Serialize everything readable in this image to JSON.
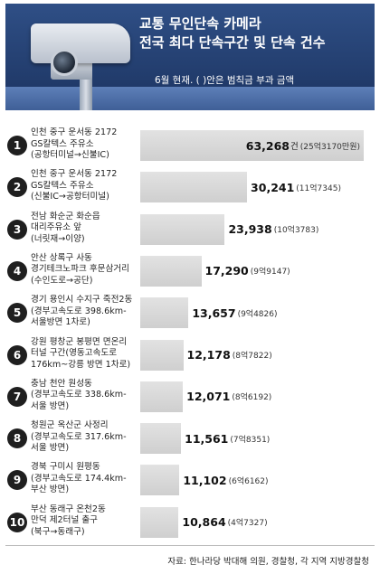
{
  "header": {
    "title_line1": "교통 무인단속 카메라",
    "title_line2": "전국 최다 단속구간 및 단속 건수",
    "subtitle": "6월 현재. (  )안은 범칙금 부과 금액"
  },
  "chart_data": {
    "type": "bar",
    "orientation": "horizontal",
    "unit": "건",
    "xlim": [
      0,
      63268
    ],
    "categories": [
      "인천 중구 운서동 2172\nGS칼텍스 주유소\n(공항터미널→신불IC)",
      "인천 중구 운서동 2172\nGS칼텍스 주유소\n(신불IC→공항터미널)",
      "전남 화순군 화순읍\n대리주유소 앞\n(너릿재→이양)",
      "안산 상록구 사동\n경기테크노파크 후문삼거리\n(수인도로→공단)",
      "경기 용인시 수지구 죽전2동\n(경부고속도로 398.6km-\n서울방면 1차로)",
      "강원 평창군 봉평면 면온리\n터널 구간(영동고속도로\n176km~강릉 방면 1차로)",
      "충남 천안 원성동\n(경부고속도로 338.6km-\n서울 방면)",
      "청원군 옥산군 사정리\n(경부고속도로 317.6km-\n서울 방면)",
      "경북 구미시 원평동\n(경부고속도로 174.4km-\n부산 방면)",
      "부산 동래구 온천2동\n만덕 제2터널 출구\n(북구→동래구)"
    ],
    "ranks": [
      "1",
      "2",
      "3",
      "4",
      "5",
      "6",
      "7",
      "8",
      "9",
      "10"
    ],
    "values": [
      63268,
      30241,
      23938,
      17290,
      13657,
      12178,
      12071,
      11561,
      11102,
      10864
    ],
    "value_labels": [
      "63,268",
      "30,241",
      "23,938",
      "17,290",
      "13,657",
      "12,178",
      "12,071",
      "11,561",
      "11,102",
      "10,864"
    ],
    "fine_notes": [
      "(25억3170만원)",
      "(11억7345)",
      "(10억3783)",
      "(9억9147)",
      "(9억4826)",
      "(8억7822)",
      "(8억6192)",
      "(7억8351)",
      "(6억6162)",
      "(4억7327)"
    ]
  },
  "footer": {
    "source": "자료: 한나라당 박대해 의원, 경찰청, 각 지역 지방경찰청"
  }
}
